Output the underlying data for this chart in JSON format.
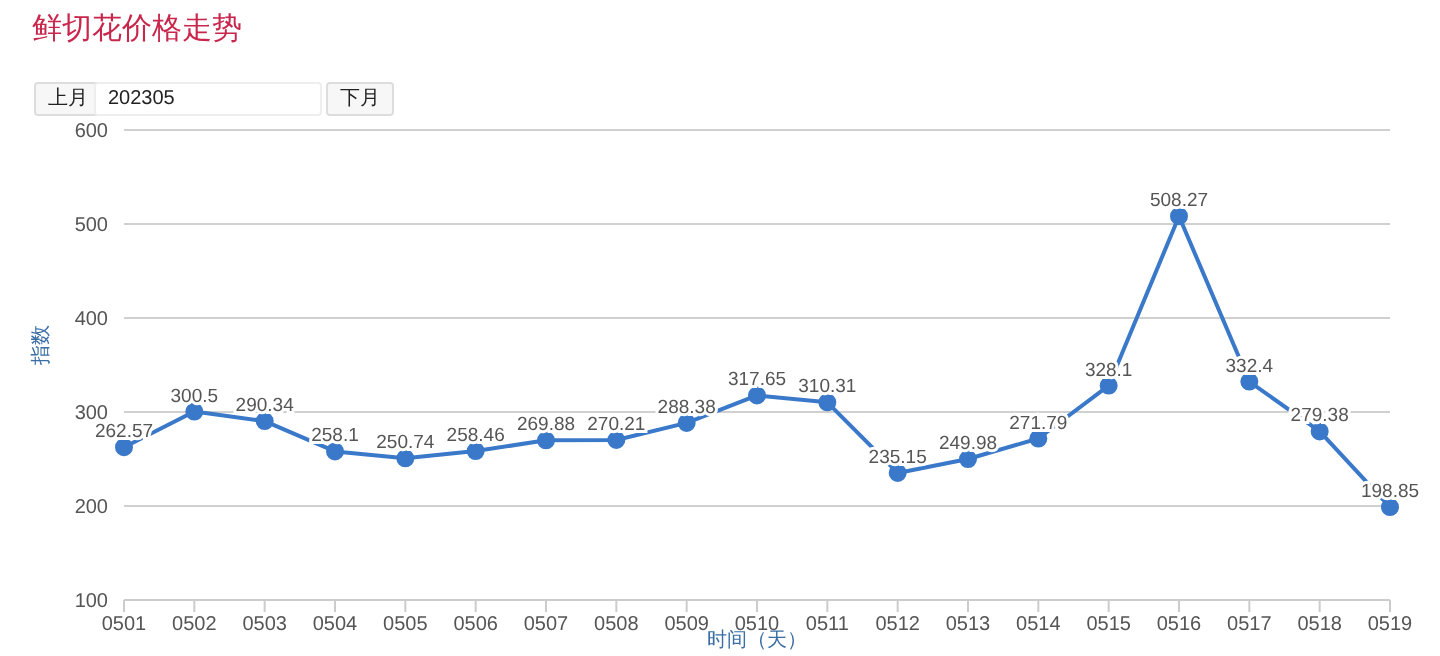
{
  "chart_data": {
    "type": "line",
    "title": "鲜切花价格走势",
    "xlabel": "时间（天）",
    "ylabel": "指数",
    "annotations": [
      "上月",
      "202305",
      "下月"
    ],
    "categories": [
      "0501",
      "0502",
      "0503",
      "0504",
      "0505",
      "0506",
      "0507",
      "0508",
      "0509",
      "0510",
      "0511",
      "0512",
      "0513",
      "0514",
      "0515",
      "0516",
      "0517",
      "0518",
      "0519"
    ],
    "series": [
      {
        "color": "#3a78c9",
        "values": [
          262.57,
          300.5,
          290.34,
          258.1,
          250.74,
          258.46,
          269.88,
          270.21,
          288.38,
          317.65,
          310.31,
          235.15,
          249.98,
          271.79,
          328.1,
          508.27,
          332.4,
          279.38,
          198.85
        ]
      }
    ],
    "ylim": [
      100,
      600
    ],
    "yticks": [
      100,
      200,
      300,
      400,
      500,
      600
    ],
    "grid": "y",
    "marker": "circle",
    "line_style": "solid",
    "legend": false,
    "data_labels": true
  }
}
